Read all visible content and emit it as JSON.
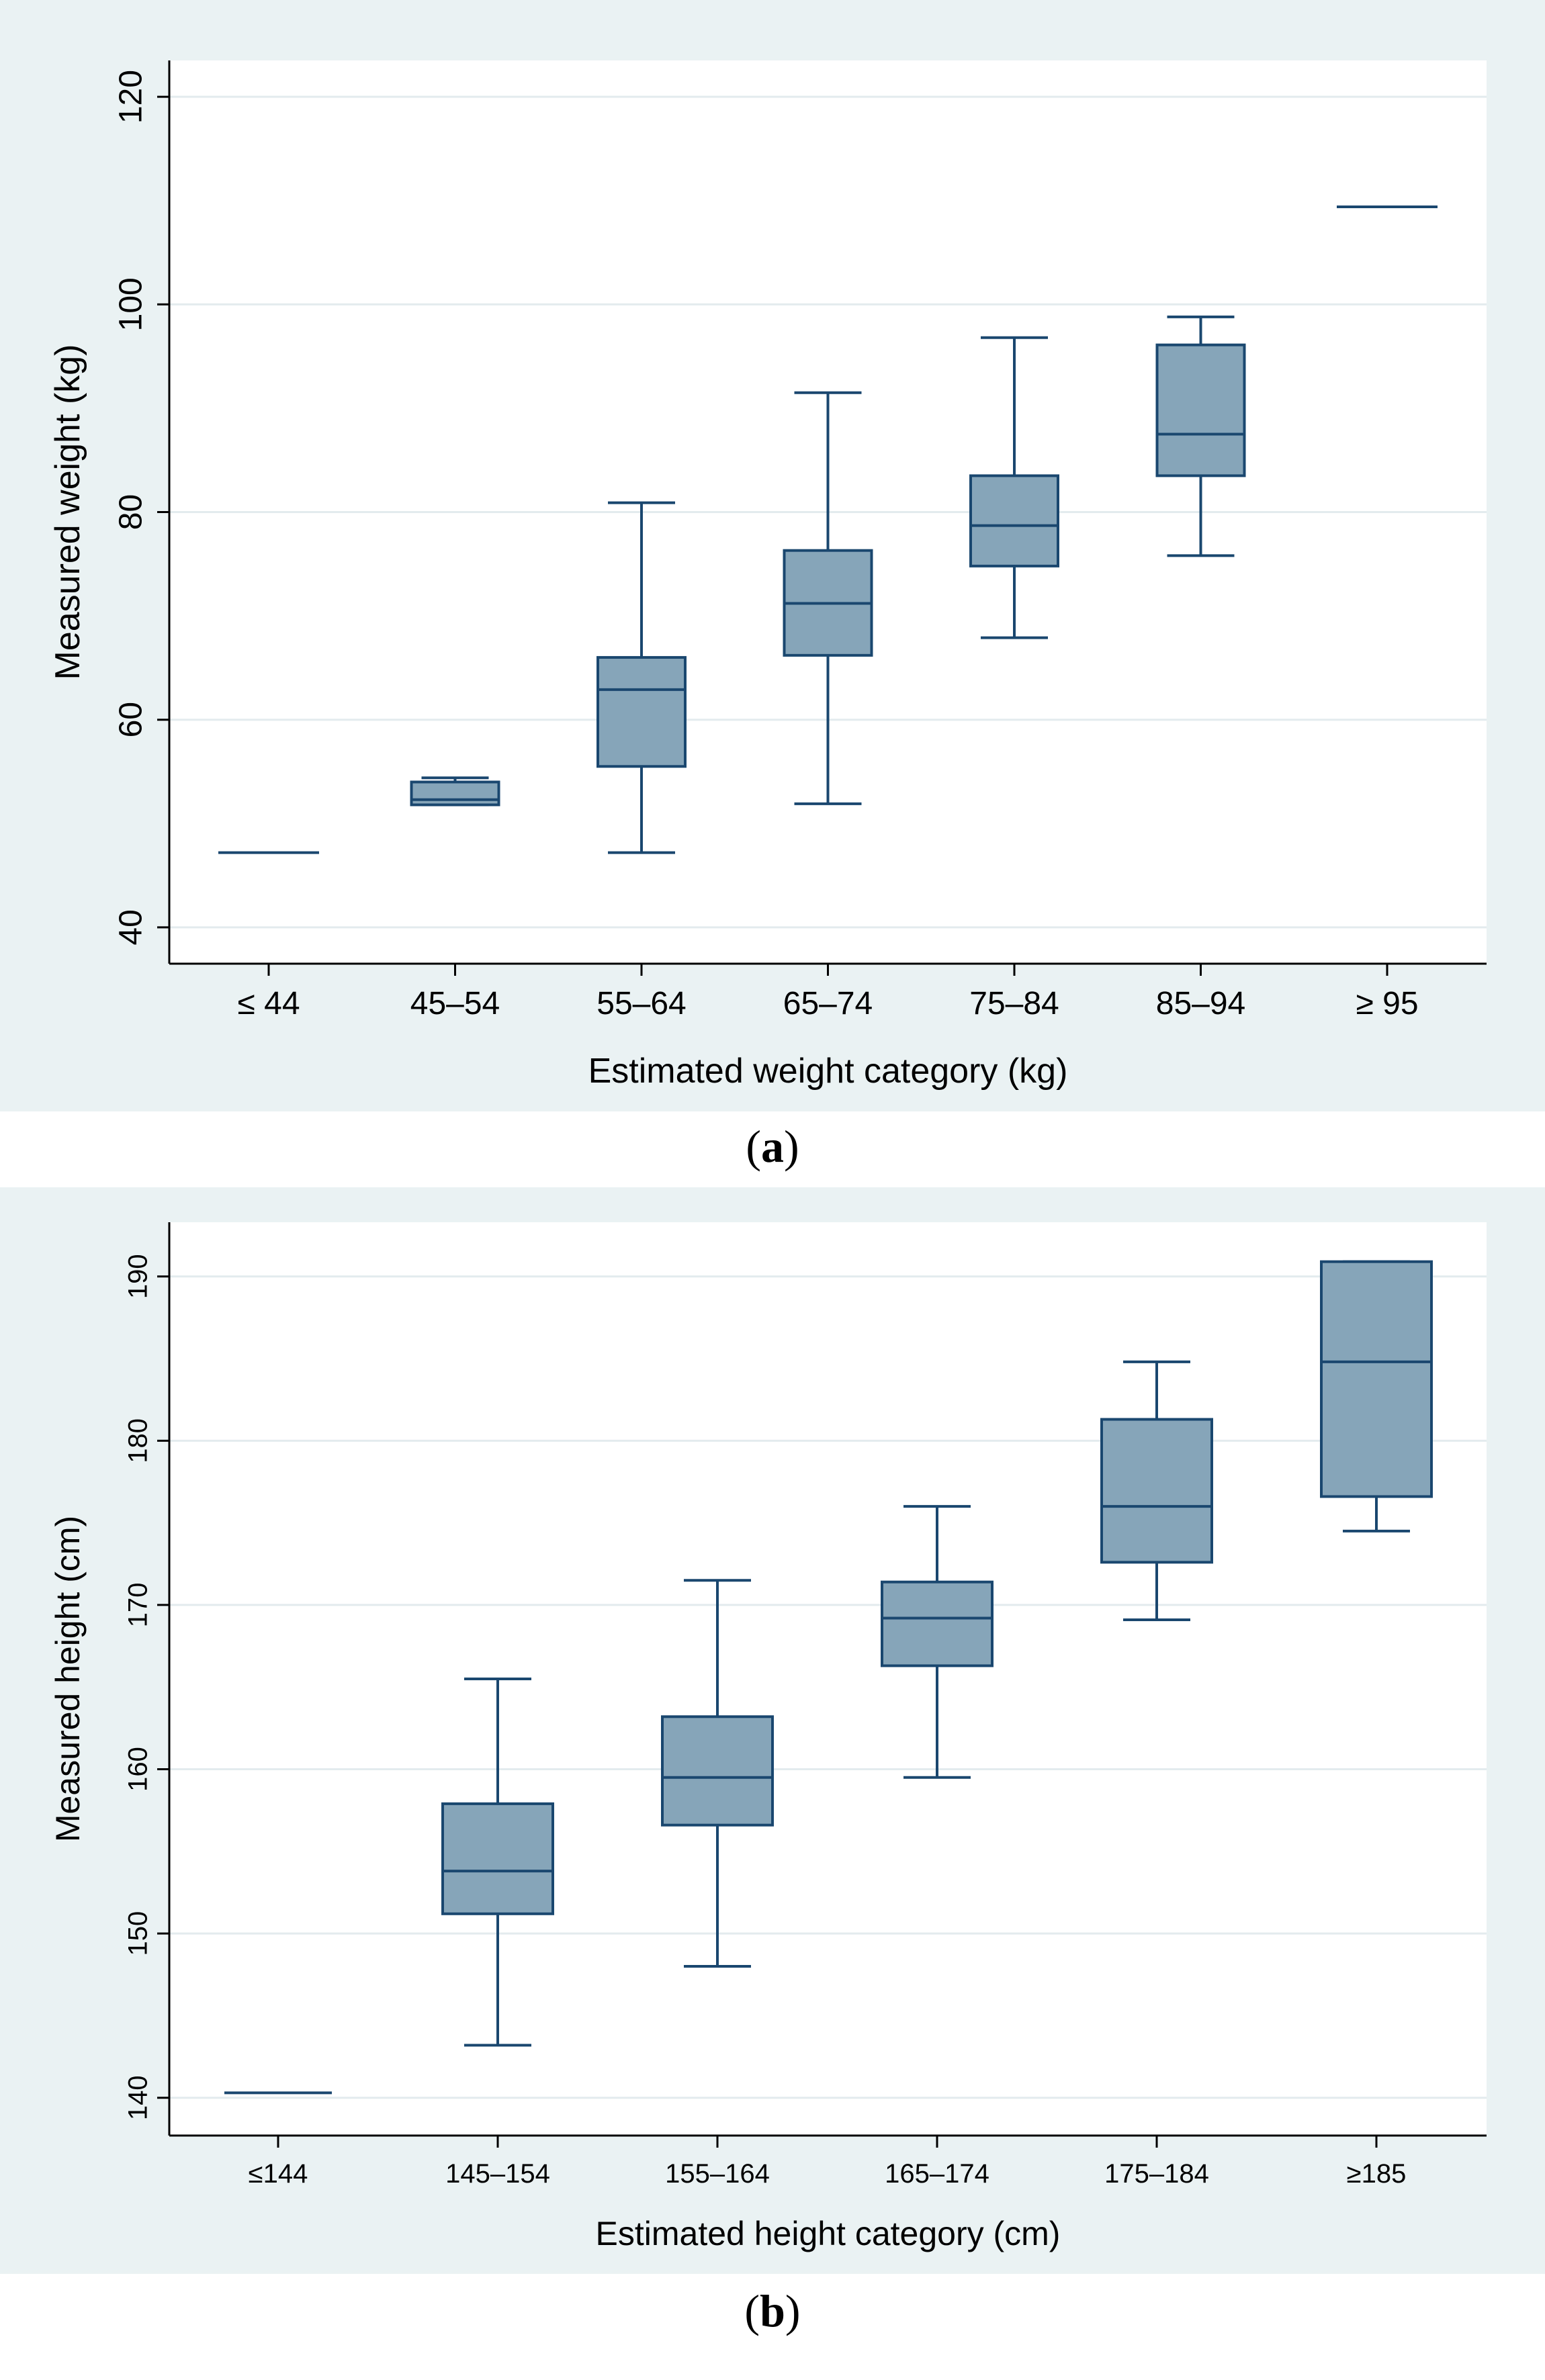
{
  "chart_data": [
    {
      "id": "a",
      "type": "box",
      "title": "",
      "xlabel": "Estimated weight category (kg)",
      "ylabel": "Measured weight (kg)",
      "ylim": [
        36.5,
        123.5
      ],
      "yticks": [
        40,
        60,
        80,
        100,
        120
      ],
      "grid": true,
      "categories": [
        "≤ 44",
        "45–54",
        "55–64",
        "65–74",
        "75–84",
        "85–94",
        "≥ 95"
      ],
      "boxes": [
        {
          "min": 47.2,
          "q1": 47.2,
          "median": 47.2,
          "q3": 47.2,
          "max": 47.2
        },
        {
          "min": 51.8,
          "q1": 51.8,
          "median": 52.3,
          "q3": 54.0,
          "max": 54.4
        },
        {
          "min": 47.2,
          "q1": 55.5,
          "median": 62.9,
          "q3": 66.0,
          "max": 80.9
        },
        {
          "min": 51.9,
          "q1": 66.2,
          "median": 71.2,
          "q3": 76.3,
          "max": 91.5
        },
        {
          "min": 67.9,
          "q1": 74.8,
          "median": 78.7,
          "q3": 83.5,
          "max": 96.8
        },
        {
          "min": 75.8,
          "q1": 83.5,
          "median": 87.5,
          "q3": 96.1,
          "max": 98.8
        },
        {
          "min": 109.4,
          "q1": 109.4,
          "median": 109.4,
          "q3": 109.4,
          "max": 109.4
        }
      ]
    },
    {
      "id": "b",
      "type": "box",
      "title": "",
      "xlabel": "Estimated height category (cm)",
      "ylabel": "Measured height (cm)",
      "ylim": [
        137.7,
        193.3
      ],
      "yticks": [
        140,
        150,
        160,
        170,
        180,
        190
      ],
      "grid": true,
      "categories": [
        "≤144",
        "145–154",
        "155–164",
        "165–174",
        "175–184",
        "≥185"
      ],
      "boxes": [
        {
          "min": 140.3,
          "q1": 140.3,
          "median": 140.3,
          "q3": 140.3,
          "max": 140.3
        },
        {
          "min": 143.2,
          "q1": 151.2,
          "median": 153.8,
          "q3": 157.9,
          "max": 165.5
        },
        {
          "min": 148.0,
          "q1": 156.6,
          "median": 159.5,
          "q3": 163.2,
          "max": 171.5
        },
        {
          "min": 159.5,
          "q1": 166.3,
          "median": 169.2,
          "q3": 171.4,
          "max": 176.0
        },
        {
          "min": 169.1,
          "q1": 172.6,
          "median": 176.0,
          "q3": 181.3,
          "max": 184.8
        },
        {
          "min": 174.5,
          "q1": 176.6,
          "median": 184.8,
          "q3": 190.9,
          "max": 190.9
        }
      ]
    }
  ],
  "captions": {
    "a": "a",
    "b": "b"
  },
  "colors": {
    "panel_bg": "#eaf2f3",
    "plot_bg": "#ffffff",
    "box_fill": "#86a5b9",
    "box_stroke": "#1a476f",
    "grid": "#e3ebee",
    "axis": "#000000"
  }
}
